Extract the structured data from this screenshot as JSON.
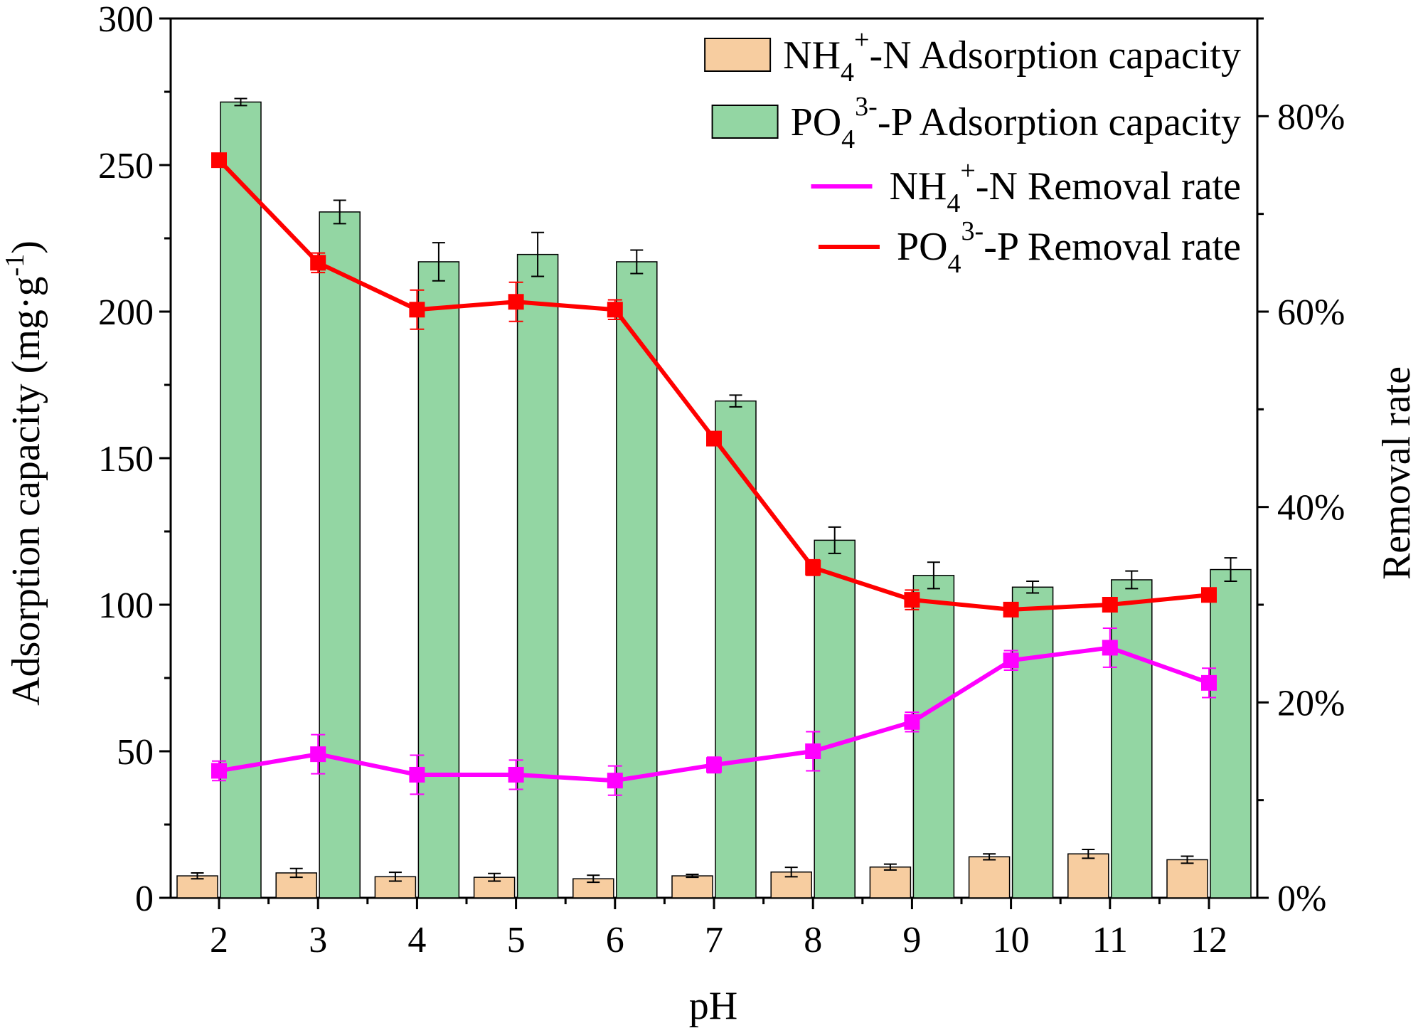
{
  "chart_data": {
    "type": "bar",
    "xlabel": "pH",
    "ylabel": "Adsorption capacity (mg·g",
    "ylabel_superscript": "-1",
    "ylabel_close": ")",
    "y2label": "Removal rate",
    "categories": [
      "2",
      "3",
      "4",
      "5",
      "6",
      "7",
      "8",
      "9",
      "10",
      "11",
      "12"
    ],
    "ylim": [
      0,
      300
    ],
    "yticks": [
      "0",
      "50",
      "100",
      "150",
      "200",
      "250",
      "300"
    ],
    "y2lim": [
      0,
      0.9
    ],
    "y2ticks": [
      "0%",
      "20%",
      "40%",
      "60%",
      "80%"
    ],
    "series": [
      {
        "name": "NH4+-N Adsorption capacity",
        "kind": "bar",
        "axis": "left",
        "color": "#F7CDA0",
        "values": [
          7.5,
          8.5,
          7.2,
          7.0,
          6.5,
          7.5,
          8.8,
          10.5,
          14.0,
          15.0,
          13.0
        ],
        "errors": [
          1.0,
          1.5,
          1.5,
          1.3,
          1.2,
          0.5,
          1.6,
          1.0,
          1.0,
          1.5,
          1.2
        ]
      },
      {
        "name": "PO43--P Adsorption capacity",
        "kind": "bar",
        "axis": "left",
        "color": "#93D6A3",
        "values": [
          271.5,
          234,
          217,
          219.5,
          217,
          169.5,
          122,
          110,
          106,
          108.5,
          112
        ],
        "errors": [
          1.2,
          4,
          6.5,
          7.5,
          4,
          2,
          4.5,
          4.5,
          2,
          3,
          4
        ]
      },
      {
        "name": "NH4+-N Removal rate",
        "kind": "line",
        "axis": "right",
        "color": "#FF00FF",
        "values": [
          0.13,
          0.147,
          0.126,
          0.126,
          0.12,
          0.136,
          0.15,
          0.18,
          0.243,
          0.256,
          0.22
        ],
        "errors": [
          0.01,
          0.02,
          0.02,
          0.015,
          0.015,
          0.008,
          0.02,
          0.01,
          0.01,
          0.02,
          0.015
        ]
      },
      {
        "name": "PO43--P Removal rate",
        "kind": "line",
        "axis": "right",
        "color": "#FF0000",
        "values": [
          0.755,
          0.65,
          0.602,
          0.61,
          0.602,
          0.47,
          0.338,
          0.305,
          0.295,
          0.3,
          0.31
        ],
        "errors": [
          0.005,
          0.01,
          0.02,
          0.02,
          0.01,
          0.005,
          0.008,
          0.01,
          0.005,
          0.005,
          0.005
        ]
      }
    ],
    "legend": {
      "position": "top-right",
      "entries": [
        {
          "base": "NH",
          "sub": "4",
          "sup": "+",
          "rest": "-N Adsorption capacity"
        },
        {
          "base": "PO",
          "sub": "4",
          "sup": "3-",
          "rest": "-P Adsorption capacity"
        },
        {
          "base": "NH",
          "sub": "4",
          "sup": "+",
          "rest": "-N Removal rate"
        },
        {
          "base": "PO",
          "sub": "4",
          "sup": "3-",
          "rest": "-P  Removal rate"
        }
      ]
    }
  }
}
